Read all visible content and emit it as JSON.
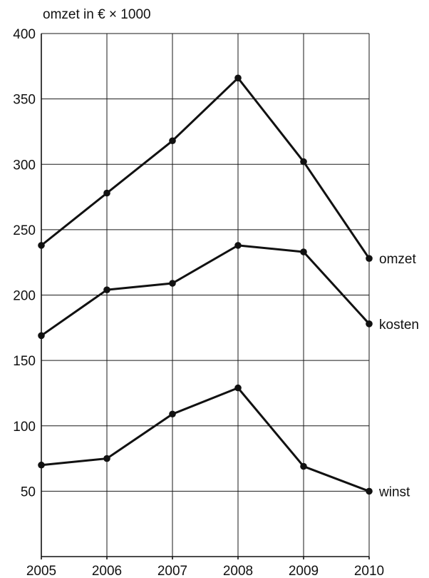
{
  "chart_data": {
    "type": "line",
    "ylabel": "omzet in € × 1000",
    "xlabel": "",
    "x": [
      "2005",
      "2006",
      "2007",
      "2008",
      "2009",
      "2010"
    ],
    "ylim": [
      0,
      400
    ],
    "yticks": [
      50,
      100,
      150,
      200,
      250,
      300,
      350,
      400
    ],
    "grid": true,
    "legend": "inline labels at line ends (right)",
    "series": [
      {
        "name": "omzet",
        "values": [
          238,
          278,
          318,
          366,
          302,
          228
        ]
      },
      {
        "name": "kosten",
        "values": [
          169,
          204,
          209,
          238,
          233,
          178
        ]
      },
      {
        "name": "winst",
        "values": [
          70,
          75,
          109,
          129,
          69,
          50
        ]
      }
    ],
    "colors": {
      "line": "#111111",
      "grid": "#1a1a1a",
      "background": "#ffffff"
    }
  }
}
